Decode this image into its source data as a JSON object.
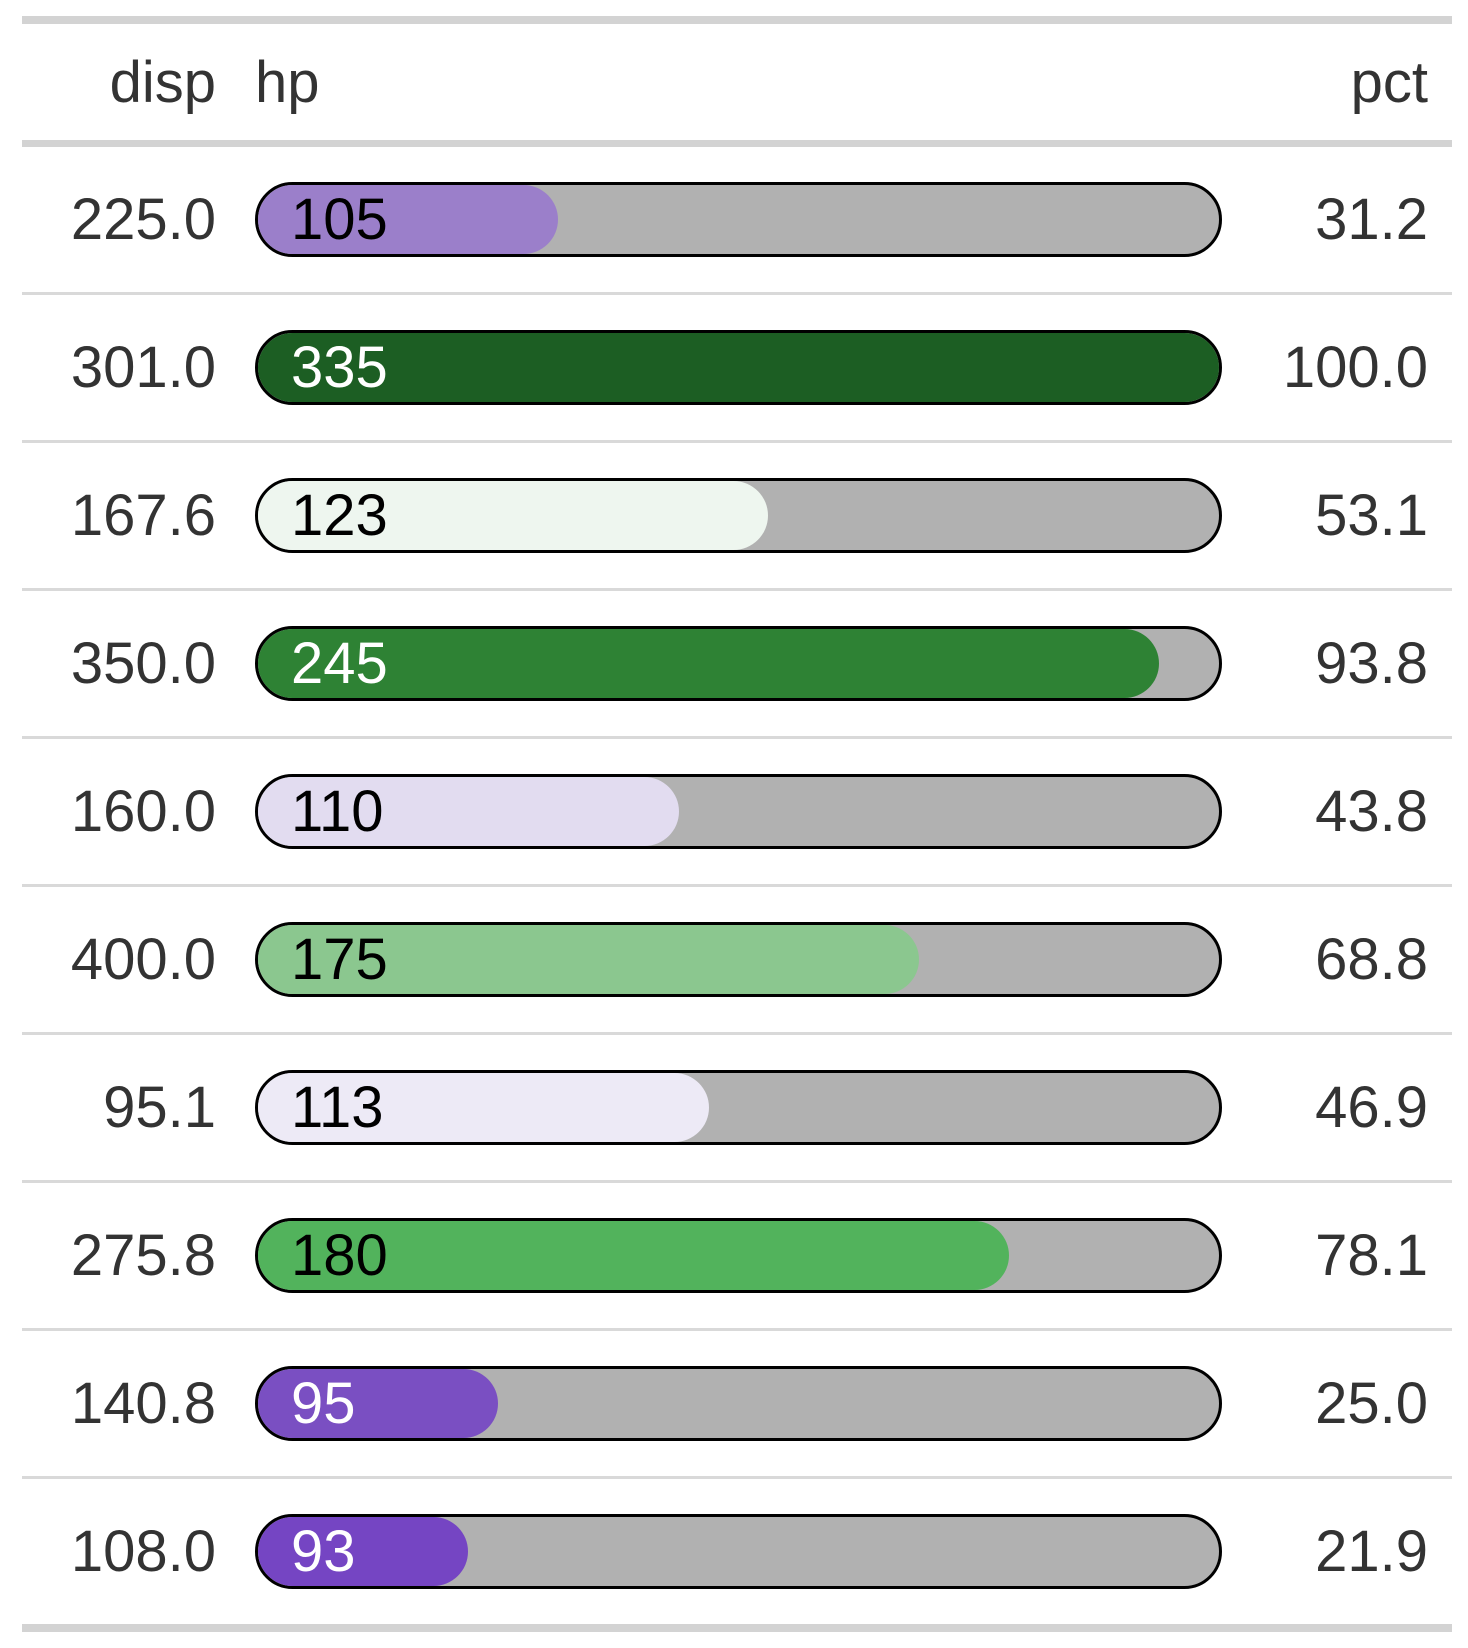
{
  "chart_data": {
    "type": "bar",
    "title": "",
    "xlabel": "disp",
    "ylabel": "pct",
    "bar_value_label": "hp",
    "bar_range": [
      0,
      100
    ],
    "grid": false,
    "legend": false,
    "categories": [
      "225.0",
      "301.0",
      "167.6",
      "350.0",
      "160.0",
      "400.0",
      "95.1",
      "275.8",
      "140.8",
      "108.0"
    ],
    "series": [
      {
        "name": "hp",
        "values": [
          105,
          335,
          123,
          245,
          110,
          175,
          113,
          180,
          95,
          93
        ]
      },
      {
        "name": "pct",
        "values": [
          31.2,
          100.0,
          53.1,
          93.8,
          43.8,
          68.8,
          46.9,
          78.1,
          25.0,
          21.9
        ]
      }
    ]
  },
  "table": {
    "headers": {
      "disp": "disp",
      "hp": "hp",
      "pct": "pct"
    },
    "rows": [
      {
        "disp": "225.0",
        "hp": "105",
        "pct": "31.2",
        "fill_percent": 31.2,
        "fill_color": "#9b7fca",
        "hp_text_color": "#000000"
      },
      {
        "disp": "301.0",
        "hp": "335",
        "pct": "100.0",
        "fill_percent": 100.0,
        "fill_color": "#1c5e23",
        "hp_text_color": "#ffffff"
      },
      {
        "disp": "167.6",
        "hp": "123",
        "pct": "53.1",
        "fill_percent": 53.1,
        "fill_color": "#eef6ef",
        "hp_text_color": "#000000"
      },
      {
        "disp": "350.0",
        "hp": "245",
        "pct": "93.8",
        "fill_percent": 93.8,
        "fill_color": "#2e8234",
        "hp_text_color": "#ffffff"
      },
      {
        "disp": "160.0",
        "hp": "110",
        "pct": "43.8",
        "fill_percent": 43.8,
        "fill_color": "#e2dcf0",
        "hp_text_color": "#000000"
      },
      {
        "disp": "400.0",
        "hp": "175",
        "pct": "68.8",
        "fill_percent": 68.8,
        "fill_color": "#8bc78f",
        "hp_text_color": "#000000"
      },
      {
        "disp": "95.1",
        "hp": "113",
        "pct": "46.9",
        "fill_percent": 46.9,
        "fill_color": "#edeaf6",
        "hp_text_color": "#000000"
      },
      {
        "disp": "275.8",
        "hp": "180",
        "pct": "78.1",
        "fill_percent": 78.1,
        "fill_color": "#52b35c",
        "hp_text_color": "#000000"
      },
      {
        "disp": "140.8",
        "hp": "95",
        "pct": "25.0",
        "fill_percent": 25.0,
        "fill_color": "#7a4fc2",
        "hp_text_color": "#ffffff"
      },
      {
        "disp": "108.0",
        "hp": "93",
        "pct": "21.9",
        "fill_percent": 21.9,
        "fill_color": "#7545c3",
        "hp_text_color": "#ffffff"
      }
    ]
  },
  "colors": {
    "background": "#ffffff",
    "text": "#333333",
    "bar_track": "#b1b1b1",
    "bar_stroke": "#000000",
    "table_border": "#d3d3d3",
    "row_divider": "#d9d9d9"
  }
}
